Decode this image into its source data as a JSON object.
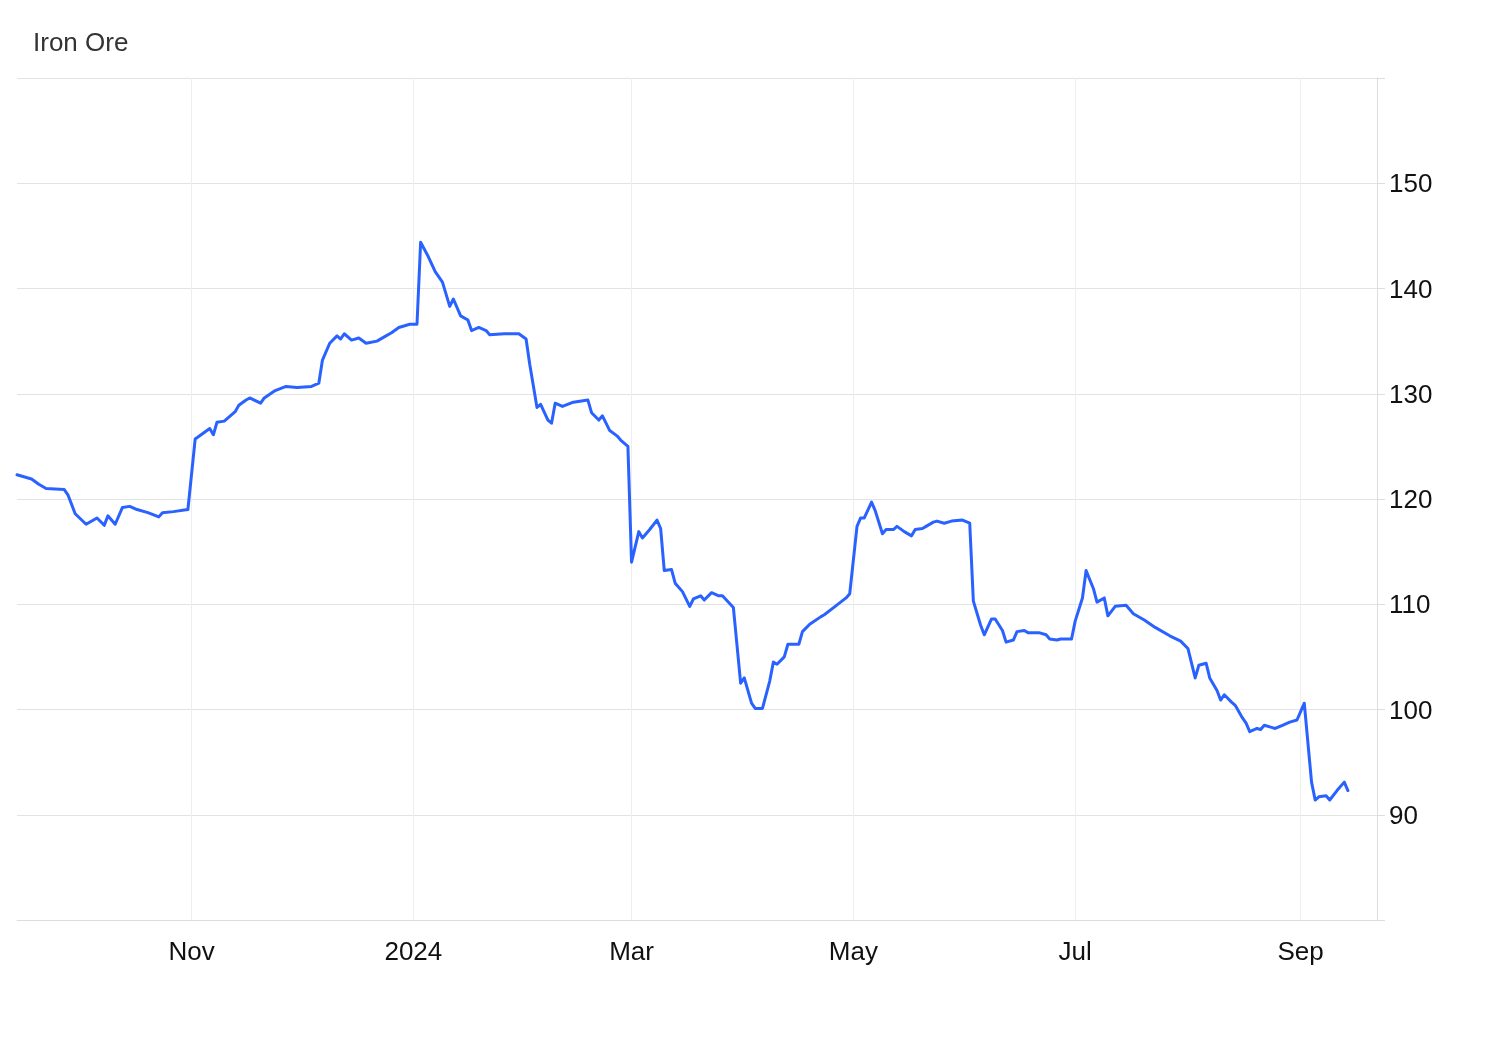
{
  "chart_data": {
    "type": "line",
    "title": "Iron Ore",
    "x": [
      "2023-09-14",
      "2023-09-18",
      "2023-09-20",
      "2023-09-22",
      "2023-09-27",
      "2023-09-28",
      "2023-09-30",
      "2023-10-03",
      "2023-10-06",
      "2023-10-08",
      "2023-10-09",
      "2023-10-11",
      "2023-10-13",
      "2023-10-15",
      "2023-10-17",
      "2023-10-20",
      "2023-10-23",
      "2023-10-24",
      "2023-10-27",
      "2023-10-31",
      "2023-11-02",
      "2023-11-06",
      "2023-11-07",
      "2023-11-08",
      "2023-11-10",
      "2023-11-13",
      "2023-11-14",
      "2023-11-16",
      "2023-11-17",
      "2023-11-20",
      "2023-11-21",
      "2023-11-24",
      "2023-11-27",
      "2023-11-30",
      "2023-12-04",
      "2023-12-06",
      "2023-12-07",
      "2023-12-09",
      "2023-12-11",
      "2023-12-12",
      "2023-12-13",
      "2023-12-15",
      "2023-12-17",
      "2023-12-19",
      "2023-12-22",
      "2023-12-24",
      "2023-12-26",
      "2023-12-28",
      "2023-12-31",
      "2024-01-02",
      "2024-01-03",
      "2024-01-05",
      "2024-01-07",
      "2024-01-09",
      "2024-01-11",
      "2024-01-12",
      "2024-01-14",
      "2024-01-16",
      "2024-01-17",
      "2024-01-19",
      "2024-01-21",
      "2024-01-22",
      "2024-01-26",
      "2024-01-30",
      "2024-02-01",
      "2024-02-02",
      "2024-02-04",
      "2024-02-05",
      "2024-02-07",
      "2024-02-08",
      "2024-02-09",
      "2024-02-11",
      "2024-02-14",
      "2024-02-18",
      "2024-02-19",
      "2024-02-21",
      "2024-02-22",
      "2024-02-24",
      "2024-02-26",
      "2024-02-27",
      "2024-02-29",
      "2024-03-01",
      "2024-03-03",
      "2024-03-04",
      "2024-03-06",
      "2024-03-08",
      "2024-03-09",
      "2024-03-10",
      "2024-03-12",
      "2024-03-13",
      "2024-03-15",
      "2024-03-17",
      "2024-03-18",
      "2024-03-20",
      "2024-03-21",
      "2024-03-23",
      "2024-03-25",
      "2024-03-26",
      "2024-03-29",
      "2024-03-31",
      "2024-04-01",
      "2024-04-03",
      "2024-04-04",
      "2024-04-06",
      "2024-04-08",
      "2024-04-09",
      "2024-04-10",
      "2024-04-12",
      "2024-04-13",
      "2024-04-16",
      "2024-04-17",
      "2024-04-19",
      "2024-04-22",
      "2024-04-23",
      "2024-04-26",
      "2024-04-29",
      "2024-04-30",
      "2024-05-02",
      "2024-05-03",
      "2024-05-04",
      "2024-05-06",
      "2024-05-07",
      "2024-05-09",
      "2024-05-10",
      "2024-05-12",
      "2024-05-13",
      "2024-05-15",
      "2024-05-17",
      "2024-05-18",
      "2024-05-20",
      "2024-05-21",
      "2024-05-23",
      "2024-05-24",
      "2024-05-26",
      "2024-05-28",
      "2024-05-31",
      "2024-06-02",
      "2024-06-03",
      "2024-06-05",
      "2024-06-06",
      "2024-06-08",
      "2024-06-09",
      "2024-06-11",
      "2024-06-12",
      "2024-06-14",
      "2024-06-15",
      "2024-06-17",
      "2024-06-18",
      "2024-06-21",
      "2024-06-23",
      "2024-06-24",
      "2024-06-26",
      "2024-06-27",
      "2024-06-30",
      "2024-07-01",
      "2024-07-03",
      "2024-07-04",
      "2024-07-06",
      "2024-07-07",
      "2024-07-09",
      "2024-07-10",
      "2024-07-12",
      "2024-07-15",
      "2024-07-17",
      "2024-07-20",
      "2024-07-23",
      "2024-07-27",
      "2024-07-30",
      "2024-08-01",
      "2024-08-03",
      "2024-08-04",
      "2024-08-06",
      "2024-08-07",
      "2024-08-09",
      "2024-08-10",
      "2024-08-11",
      "2024-08-13",
      "2024-08-14",
      "2024-08-16",
      "2024-08-17",
      "2024-08-18",
      "2024-08-20",
      "2024-08-21",
      "2024-08-22",
      "2024-08-24",
      "2024-08-25",
      "2024-08-27",
      "2024-08-29",
      "2024-08-31",
      "2024-09-02",
      "2024-09-04",
      "2024-09-05",
      "2024-09-06",
      "2024-09-08",
      "2024-09-09",
      "2024-09-11",
      "2024-09-13",
      "2024-09-14"
    ],
    "series": [
      {
        "color": "#2962ff",
        "values": [
          122.3,
          121.9,
          121.4,
          121.0,
          120.9,
          120.4,
          118.6,
          117.6,
          118.2,
          117.5,
          118.4,
          117.6,
          119.2,
          119.3,
          119.0,
          118.7,
          118.3,
          118.7,
          118.8,
          119.0,
          125.7,
          126.7,
          126.1,
          127.3,
          127.4,
          128.3,
          128.9,
          129.4,
          129.6,
          129.1,
          129.6,
          130.3,
          130.7,
          130.6,
          130.7,
          131.0,
          133.2,
          134.8,
          135.5,
          135.2,
          135.7,
          135.1,
          135.3,
          134.8,
          135.0,
          135.4,
          135.8,
          136.3,
          136.6,
          136.6,
          144.4,
          143.1,
          141.6,
          140.6,
          138.3,
          139.0,
          137.4,
          137.0,
          136.0,
          136.3,
          136.0,
          135.6,
          135.7,
          135.7,
          135.2,
          132.8,
          128.7,
          129.0,
          127.5,
          127.2,
          129.1,
          128.8,
          129.2,
          129.4,
          128.2,
          127.5,
          127.9,
          126.5,
          126.0,
          125.6,
          125.0,
          114.0,
          116.9,
          116.3,
          117.1,
          118.0,
          117.2,
          113.2,
          113.3,
          112.0,
          111.2,
          109.8,
          110.5,
          110.8,
          110.4,
          111.1,
          110.8,
          110.8,
          109.7,
          102.5,
          103.0,
          100.6,
          100.1,
          100.1,
          102.7,
          104.5,
          104.3,
          105.0,
          106.2,
          106.2,
          107.4,
          108.1,
          108.8,
          109.0,
          109.8,
          110.6,
          111.0,
          117.4,
          118.2,
          118.2,
          119.7,
          118.9,
          116.7,
          117.1,
          117.1,
          117.4,
          116.9,
          116.5,
          117.1,
          117.2,
          117.4,
          117.8,
          117.9,
          117.7,
          117.9,
          118.0,
          117.7,
          110.3,
          108.0,
          107.1,
          108.6,
          108.6,
          107.5,
          106.4,
          106.6,
          107.4,
          107.5,
          107.3,
          107.3,
          107.1,
          106.7,
          106.6,
          106.7,
          106.7,
          108.4,
          110.6,
          113.2,
          111.5,
          110.2,
          110.6,
          108.9,
          109.8,
          109.9,
          109.1,
          108.5,
          107.8,
          107.0,
          106.5,
          105.8,
          103.0,
          104.2,
          104.4,
          103.0,
          101.8,
          100.9,
          101.4,
          100.7,
          100.4,
          99.2,
          98.7,
          97.9,
          98.2,
          98.1,
          98.5,
          98.3,
          98.2,
          98.5,
          98.8,
          99.0,
          100.6,
          93.1,
          91.4,
          91.7,
          91.8,
          91.4,
          92.3,
          93.1,
          92.3
        ]
      }
    ],
    "xlim": [
      "2023-09-14",
      "2024-09-22"
    ],
    "xticks": [
      {
        "value": "2023-11-01",
        "label": "Nov"
      },
      {
        "value": "2024-01-01",
        "label": "2024"
      },
      {
        "value": "2024-03-01",
        "label": "Mar"
      },
      {
        "value": "2024-05-01",
        "label": "May"
      },
      {
        "value": "2024-07-01",
        "label": "Jul"
      },
      {
        "value": "2024-09-01",
        "label": "Sep"
      }
    ],
    "ylim": [
      80,
      160
    ],
    "yticks": [
      {
        "value": 80,
        "label": null
      },
      90,
      100,
      110,
      120,
      130,
      140,
      150,
      {
        "value": 160,
        "label": null
      }
    ],
    "grid": true,
    "marker": "none",
    "line_style": "solid"
  }
}
